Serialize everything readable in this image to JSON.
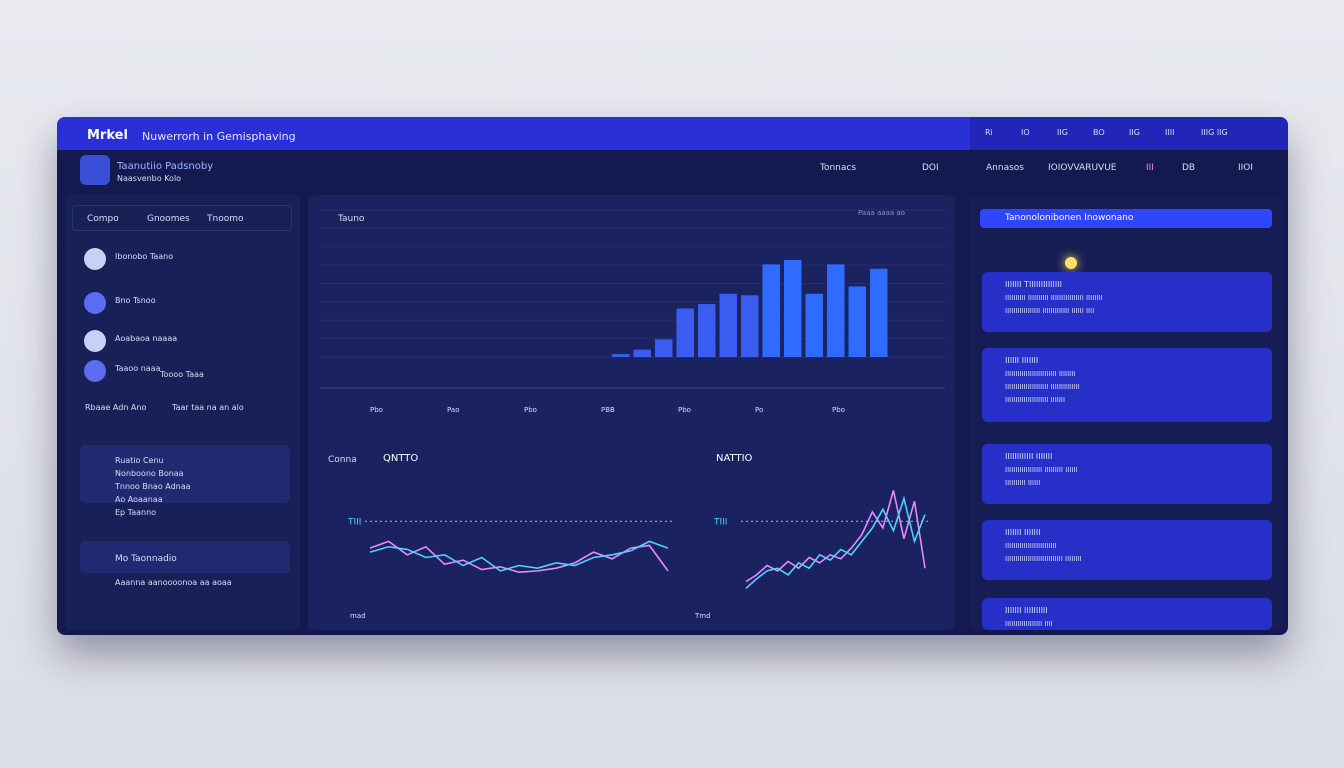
{
  "header": {
    "title": "Mrkel",
    "subtitle": "Nuwerrorh in Gemisphaving",
    "right_tabs": [
      "Ri",
      "IO",
      "IIG",
      "BO",
      "IIG",
      "IIII",
      "IIIG IIG"
    ]
  },
  "toolbar": {
    "brand": "Taanutiio Padsnoby",
    "brand_sub": "Naasvenbo Kolo",
    "items": [
      "Tonnacs",
      "DOI",
      "Annasos",
      "IOIOVVARUVUE",
      "III",
      "DB",
      "IIOI"
    ]
  },
  "sidebar": {
    "tabs": [
      "Compo",
      "Gnoomes",
      "Tnoomo"
    ],
    "items": [
      "Ibonobo Taano",
      "Bno Tsnoo",
      "Aoabaoa naaaa",
      "Taaoo naaa",
      "Toooo Taaa"
    ],
    "row": [
      "Rbaae Adn Ano",
      "Taar taa na an alo"
    ],
    "list": [
      "Ruatio Cenu",
      "Nonboono Bonaa",
      "Tnnoo Bnao Adnaa",
      "Ao Aoaanaa",
      "Ep Taanno"
    ],
    "footer_title": "Mo Taonnadio",
    "footer_text": "Aaanna aanoooonoa aa aoaa"
  },
  "chart_data": [
    {
      "type": "bar",
      "title": "Tauno",
      "subtitle": "Paaa aaaa ao",
      "categories": [
        null,
        null,
        null,
        null,
        null,
        null,
        null,
        null,
        null,
        null,
        null,
        null,
        null
      ],
      "values": [
        2,
        5,
        12,
        33,
        36,
        43,
        42,
        63,
        66,
        43,
        63,
        48,
        60
      ],
      "color": "#3a5cf0",
      "ylim": [
        0,
        100
      ],
      "notes": [
        "Pbo",
        "Pao",
        "Pbo",
        "PBB",
        "Pbo",
        "Po",
        "Pbo"
      ]
    },
    {
      "type": "line",
      "title": "QNTTO",
      "label": "Conna",
      "footer": "mad",
      "x": [
        0,
        1,
        2,
        3,
        4,
        5,
        6,
        7,
        8,
        9,
        10,
        11,
        12,
        13,
        14,
        15,
        16
      ],
      "xlim": [
        0,
        16
      ],
      "ylim": [
        0,
        100
      ],
      "reference": {
        "value": 55,
        "label": "TIII"
      },
      "series": [
        {
          "color": "#e889ff",
          "values": [
            35,
            40,
            30,
            36,
            23,
            26,
            19,
            21,
            17,
            18,
            20,
            24,
            32,
            27,
            35,
            37,
            18
          ]
        },
        {
          "color": "#4fd2ff",
          "values": [
            32,
            36,
            34,
            28,
            30,
            22,
            28,
            18,
            22,
            20,
            24,
            22,
            28,
            30,
            33,
            40,
            35
          ]
        }
      ]
    },
    {
      "type": "line",
      "title": "NATTIO",
      "footer": "Tmd",
      "x": [
        0,
        1,
        2,
        3,
        4,
        5,
        6,
        7,
        8,
        9,
        10,
        11,
        12,
        13,
        14,
        15,
        16,
        17
      ],
      "xlim": [
        0,
        17
      ],
      "ylim": [
        0,
        100
      ],
      "reference": {
        "value": 55,
        "label": "TIII"
      },
      "series": [
        {
          "color": "#e889ff",
          "values": [
            10,
            15,
            22,
            18,
            25,
            20,
            28,
            24,
            30,
            27,
            35,
            45,
            62,
            50,
            78,
            42,
            70,
            20
          ]
        },
        {
          "color": "#4fd2ff",
          "values": [
            5,
            12,
            18,
            20,
            15,
            24,
            20,
            30,
            26,
            34,
            30,
            40,
            50,
            64,
            48,
            72,
            40,
            60
          ]
        }
      ]
    }
  ],
  "right_panel": {
    "banner": "Tanonolonibonen Inowonano",
    "cards": [
      {
        "title": "IIIIIII TIIIIIIIIIIIIII",
        "lines": [
          "IIIIIIIIII IIIIIIIIII IIIIIIIIIIIIIIII IIIIIIII",
          "IIIIIIIIIIIIIIIII IIIIIIIIIIIII IIIIII IIII"
        ]
      },
      {
        "title": "IIIIII IIIIIII",
        "lines": [
          "IIIIIIIIIIIIIIIIIIIIIIIII IIIIIIII",
          "IIIIIIIIIIIIIIIIIIIII IIIIIIIIIIIIII",
          "IIIIIIIIIIIIIIIIIIIII IIIIIII"
        ]
      },
      {
        "title": "IIIIIIIIIIII IIIIIII",
        "lines": [
          "IIIIIIIIIIIIIIIIII IIIIIIIII IIIIII",
          "IIIIIIIIII IIIIII"
        ]
      },
      {
        "title": "IIIIIII IIIIIII",
        "lines": [
          "IIIIIIIIIIIIIIIIIIIIIIIII",
          "IIIIIIIIIIIIIIIIIIIIIIIIIIII IIIIIIII"
        ]
      },
      {
        "title": "IIIIIII IIIIIIIIII",
        "lines": [
          "IIIIIIIIIIIIIIIIII IIII"
        ]
      }
    ]
  }
}
